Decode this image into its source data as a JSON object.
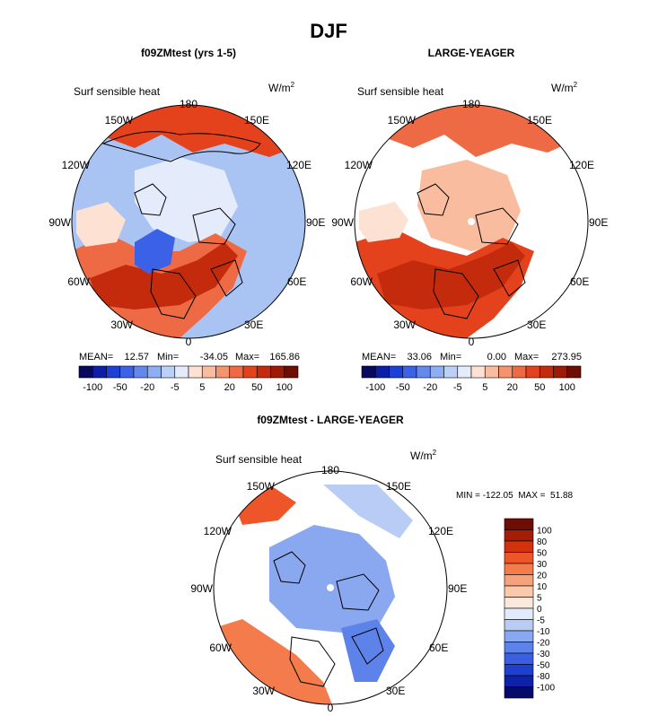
{
  "figure_title": "DJF",
  "chart_data": [
    {
      "type": "polar-map",
      "panel_title": "f09ZMtest (yrs 1-5)",
      "variable": "Surf sensible heat",
      "units": "W/m",
      "units_exp": "2",
      "lon_labels": [
        "180",
        "150E",
        "120E",
        "90E",
        "60E",
        "30E",
        "0",
        "30W",
        "60W",
        "90W",
        "120W",
        "150W"
      ],
      "stats": {
        "mean_label": "MEAN=",
        "mean": "12.57",
        "min_label": "Min=",
        "min": "-34.05",
        "max_label": "Max=",
        "max": "165.86"
      },
      "colorbar_ticks": [
        "-100",
        "-50",
        "-20",
        "-5",
        "5",
        "20",
        "50",
        "100"
      ]
    },
    {
      "type": "polar-map",
      "panel_title": "LARGE-YEAGER",
      "variable": "Surf sensible heat",
      "units": "W/m",
      "units_exp": "2",
      "lon_labels": [
        "180",
        "150E",
        "120E",
        "90E",
        "60E",
        "30E",
        "0",
        "30W",
        "60W",
        "90W",
        "120W",
        "150W"
      ],
      "stats": {
        "mean_label": "MEAN=",
        "mean": "33.06",
        "min_label": "Min=",
        "min": "0.00",
        "max_label": "Max=",
        "max": "273.95"
      },
      "colorbar_ticks": [
        "-100",
        "-50",
        "-20",
        "-5",
        "5",
        "20",
        "50",
        "100"
      ]
    },
    {
      "type": "polar-map",
      "panel_title": "f09ZMtest - LARGE-YEAGER",
      "variable": "Surf sensible heat",
      "units": "W/m",
      "units_exp": "2",
      "lon_labels": [
        "180",
        "150E",
        "120E",
        "90E",
        "60E",
        "30E",
        "0",
        "30W",
        "60W",
        "90W",
        "120W",
        "150W"
      ],
      "stats_text": "MIN = -122.05  MAX =  51.88",
      "colorbar_ticks": [
        "100",
        "80",
        "50",
        "30",
        "20",
        "10",
        "5",
        "0",
        "-5",
        "-10",
        "-20",
        "-30",
        "-50",
        "-80",
        "-100"
      ]
    }
  ],
  "colors": {
    "abs_scale": [
      "#08085c",
      "#0c1ea6",
      "#1c3fd6",
      "#3b62e6",
      "#6488ee",
      "#8fadf2",
      "#bcd0f7",
      "#e4ecfb",
      "#fde2d4",
      "#f9bc9e",
      "#f4946e",
      "#ee6a45",
      "#e4421d",
      "#c42b0c",
      "#9d1a06",
      "#6e0d02"
    ],
    "diff_scale": [
      "#6e0d02",
      "#a61d06",
      "#d2330c",
      "#ee5528",
      "#f47c4c",
      "#f7a27a",
      "#fac8ac",
      "#fde8dc",
      "#e2ebfb",
      "#b8ccf6",
      "#8aa8f0",
      "#5d83ea",
      "#3a5fe2",
      "#1f3fd1",
      "#0e22a8",
      "#060a6a"
    ],
    "land": "#ffffff",
    "ocean_cool": "#a9c3f3"
  }
}
